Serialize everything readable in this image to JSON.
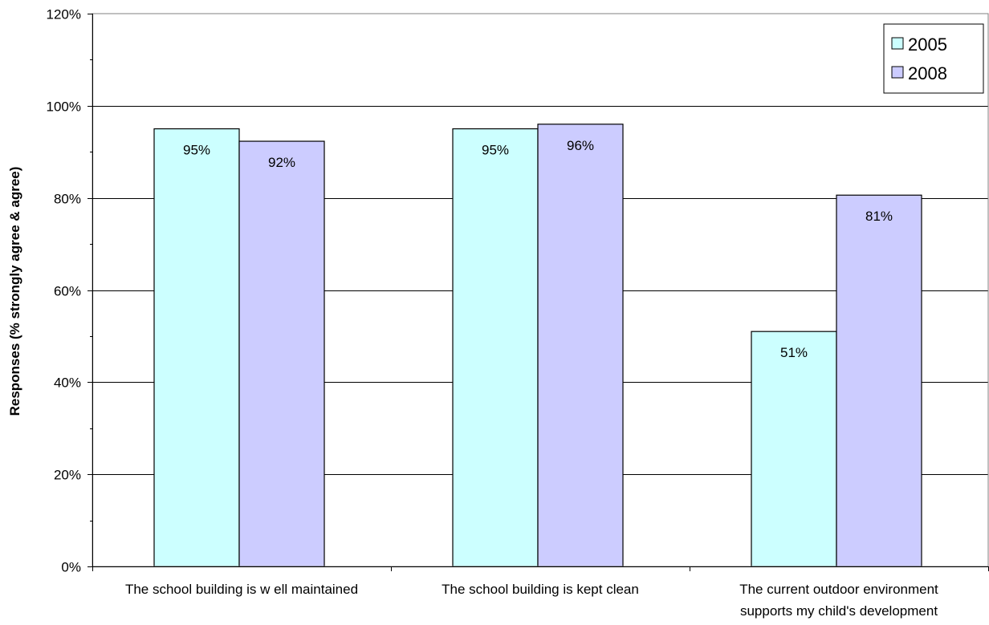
{
  "chart_data": {
    "type": "bar",
    "title": "",
    "xlabel": "",
    "ylabel": "Responses (% strongly agree & agree)",
    "ylim": [
      0,
      1.2
    ],
    "yticks": [
      0,
      0.2,
      0.4,
      0.6,
      0.8,
      1.0,
      1.2
    ],
    "ytick_labels": [
      "0%",
      "20%",
      "40%",
      "60%",
      "80%",
      "100%",
      "120%"
    ],
    "grid": true,
    "legend_position": "top-right",
    "categories": [
      [
        "The school building is w ell maintained"
      ],
      [
        "The school building is kept clean"
      ],
      [
        "The current outdoor environment",
        "supports my child's development"
      ]
    ],
    "series": [
      {
        "name": "2005",
        "color": "#ccffff",
        "values": [
          0.95,
          0.95,
          0.51
        ],
        "labels": [
          "95%",
          "95%",
          "51%"
        ]
      },
      {
        "name": "2008",
        "color": "#ccccff",
        "values": [
          0.923,
          0.96,
          0.806
        ],
        "labels": [
          "92%",
          "96%",
          "81%"
        ]
      }
    ]
  }
}
